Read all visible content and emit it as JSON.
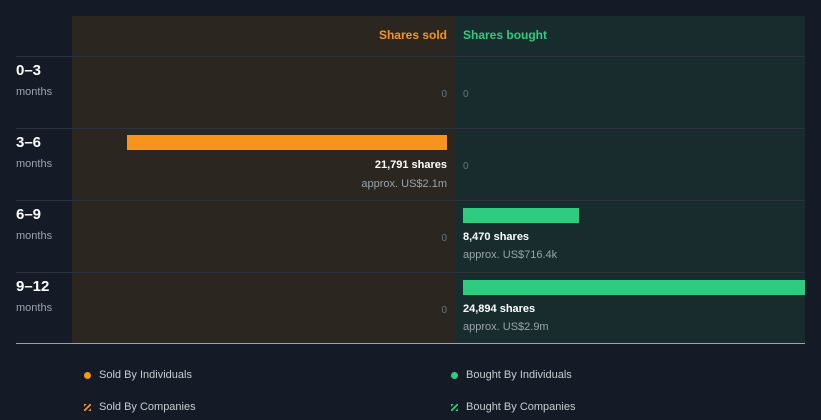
{
  "colors": {
    "sold": "#f7941d",
    "bought": "#2ecc80",
    "sold_panel": "#2b2720",
    "bought_panel": "#182c2d",
    "background": "#151b26"
  },
  "header": {
    "sold_label": "Shares sold",
    "bought_label": "Shares bought"
  },
  "legend": {
    "sold_individuals": "Sold By Individuals",
    "bought_individuals": "Bought By Individuals",
    "sold_companies": "Sold By Companies",
    "bought_companies": "Bought By Companies"
  },
  "chart_data": {
    "type": "bar",
    "orientation": "horizontal-diverging",
    "categories": [
      "0–3",
      "3–6",
      "6–9",
      "9–12"
    ],
    "category_unit": "months",
    "series": [
      {
        "name": "Shares sold",
        "values": [
          0,
          21791,
          0,
          0
        ],
        "labels": [
          "0",
          "21,791 shares",
          "0",
          "0"
        ],
        "approx": [
          "",
          "approx. US$2.1m",
          "",
          ""
        ]
      },
      {
        "name": "Shares bought",
        "values": [
          0,
          0,
          8470,
          24894
        ],
        "labels": [
          "0",
          "0",
          "8,470 shares",
          "24,894 shares"
        ],
        "approx": [
          "",
          "",
          "approx. US$716.4k",
          "approx. US$2.9m"
        ]
      }
    ]
  }
}
